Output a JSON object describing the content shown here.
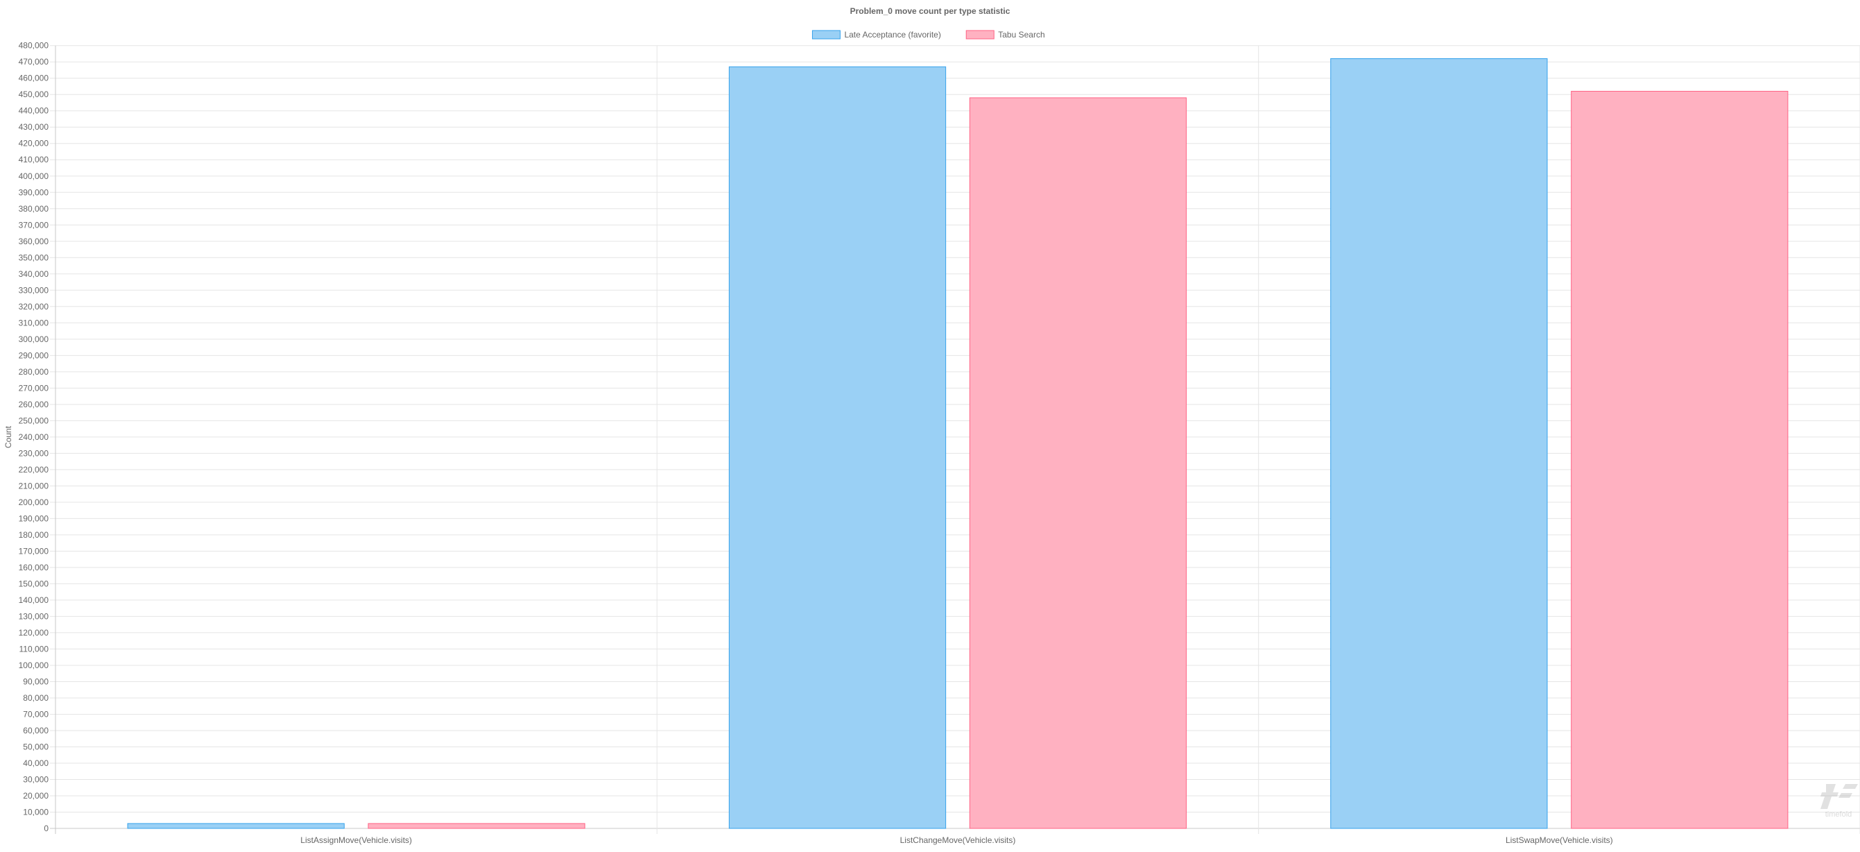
{
  "chart_data": {
    "type": "bar",
    "title": "Problem_0 move count per type statistic",
    "xlabel": "",
    "ylabel": "Count",
    "ylim": [
      0,
      480000
    ],
    "ytick_step": 10000,
    "grid": true,
    "legend_position": "top",
    "categories": [
      "ListAssignMove(Vehicle.visits)",
      "ListChangeMove(Vehicle.visits)",
      "ListSwapMove(Vehicle.visits)"
    ],
    "series": [
      {
        "name": "Late Acceptance (favorite)",
        "values": [
          3000,
          467000,
          472000
        ],
        "fill": "#9ad0f5",
        "stroke": "#36a2eb"
      },
      {
        "name": "Tabu Search",
        "values": [
          3000,
          448000,
          452000
        ],
        "fill": "#ffb1c1",
        "stroke": "#ff6384"
      }
    ]
  },
  "watermark": "timefold"
}
